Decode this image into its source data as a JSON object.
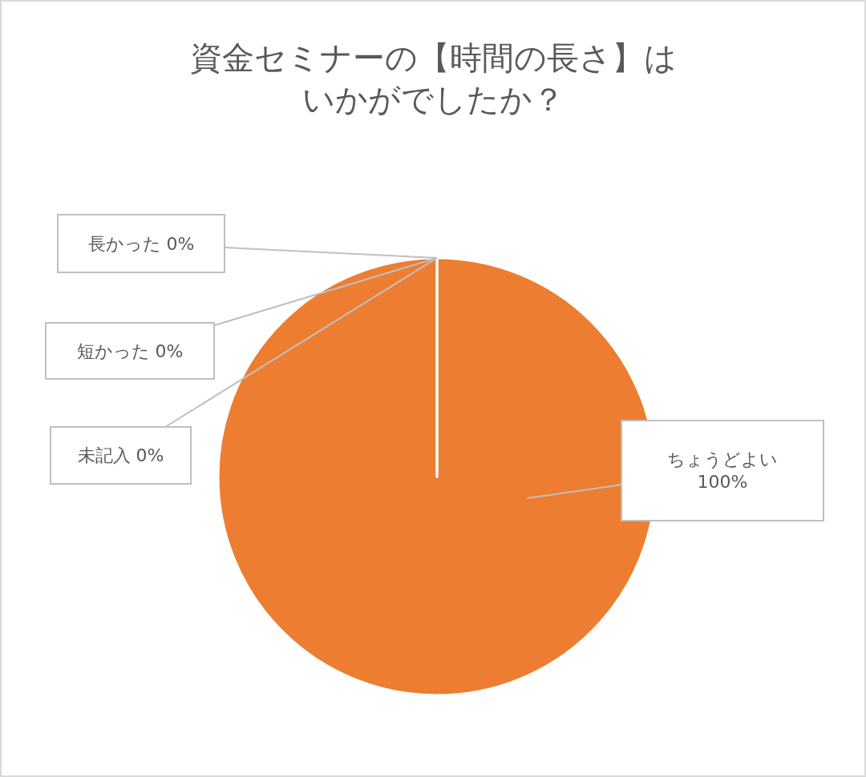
{
  "chart_data": {
    "type": "pie",
    "title": "資金セミナーの【時間の長さ】はいかがでしたか？",
    "categories": [
      "長かった",
      "ちょうどよい",
      "短かった",
      "未記入"
    ],
    "values": [
      0,
      100,
      0,
      0
    ],
    "value_labels": [
      "0%",
      "100%",
      "0%",
      "0%"
    ],
    "colors": [
      "#4472c4",
      "#ed7d31",
      "#a5a5a5",
      "#ffc000"
    ]
  }
}
